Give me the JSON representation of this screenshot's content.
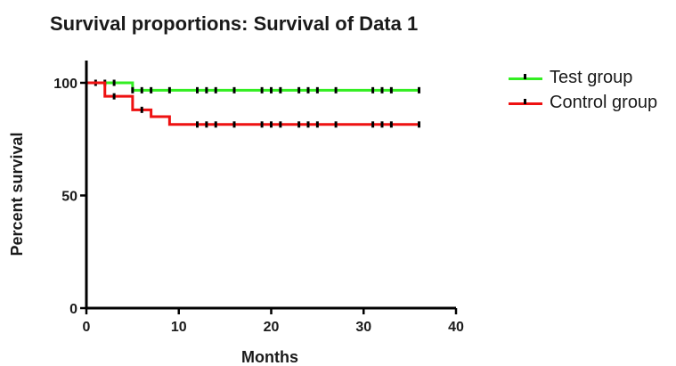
{
  "chart_data": {
    "type": "line",
    "step": true,
    "title": "Survival proportions: Survival of Data 1",
    "xlabel": "Months",
    "ylabel": "Percent survival",
    "xlim": [
      0,
      40
    ],
    "ylim": [
      0,
      100
    ],
    "xticks": [
      0,
      10,
      20,
      30,
      40
    ],
    "yticks": [
      0,
      50,
      100
    ],
    "grid": false,
    "legend_position": "top-right",
    "series": [
      {
        "name": "Test group",
        "color": "#33ee22",
        "steps": [
          [
            0,
            100
          ],
          [
            5,
            100
          ],
          [
            5,
            96.7
          ],
          [
            36,
            96.7
          ]
        ],
        "censored": [
          [
            1,
            100
          ],
          [
            2,
            100
          ],
          [
            3,
            100
          ],
          [
            5,
            96.7
          ],
          [
            6,
            96.7
          ],
          [
            7,
            96.7
          ],
          [
            9,
            96.7
          ],
          [
            12,
            96.7
          ],
          [
            13,
            96.7
          ],
          [
            14,
            96.7
          ],
          [
            16,
            96.7
          ],
          [
            19,
            96.7
          ],
          [
            20,
            96.7
          ],
          [
            21,
            96.7
          ],
          [
            23,
            96.7
          ],
          [
            24,
            96.7
          ],
          [
            25,
            96.7
          ],
          [
            27,
            96.7
          ],
          [
            31,
            96.7
          ],
          [
            32,
            96.7
          ],
          [
            33,
            96.7
          ],
          [
            36,
            96.7
          ]
        ]
      },
      {
        "name": "Control group",
        "color": "#ee1111",
        "steps": [
          [
            0,
            100
          ],
          [
            2,
            100
          ],
          [
            2,
            94
          ],
          [
            5,
            94
          ],
          [
            5,
            88
          ],
          [
            7,
            88
          ],
          [
            7,
            85
          ],
          [
            9,
            85
          ],
          [
            9,
            81.5
          ],
          [
            36,
            81.5
          ]
        ],
        "censored": [
          [
            3,
            94
          ],
          [
            6,
            88
          ],
          [
            12,
            81.5
          ],
          [
            13,
            81.5
          ],
          [
            14,
            81.5
          ],
          [
            16,
            81.5
          ],
          [
            19,
            81.5
          ],
          [
            20,
            81.5
          ],
          [
            21,
            81.5
          ],
          [
            23,
            81.5
          ],
          [
            24,
            81.5
          ],
          [
            25,
            81.5
          ],
          [
            27,
            81.5
          ],
          [
            31,
            81.5
          ],
          [
            32,
            81.5
          ],
          [
            33,
            81.5
          ],
          [
            36,
            81.5
          ]
        ]
      }
    ]
  }
}
